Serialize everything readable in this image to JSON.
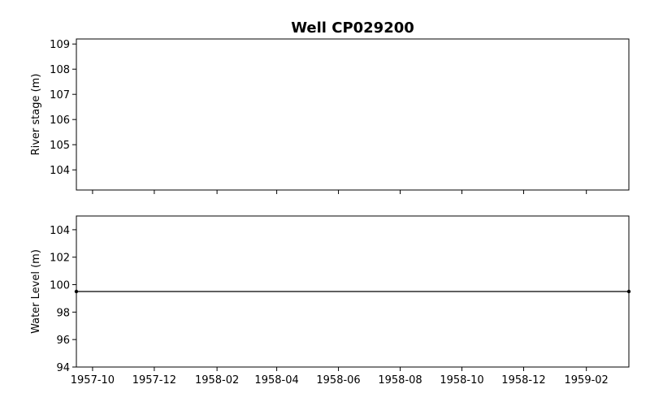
{
  "chart_data": {
    "type": "line",
    "title": "Well CP029200",
    "x_ticks": [
      "1957-10",
      "1957-12",
      "1958-02",
      "1958-04",
      "1958-06",
      "1958-08",
      "1958-10",
      "1958-12",
      "1959-02"
    ],
    "xlim": [
      "1957-09-15",
      "1959-03-15"
    ],
    "panels": [
      {
        "id": "river",
        "ylabel": "River stage (m)",
        "ylim": [
          103.2,
          109.2
        ],
        "y_ticks": [
          104,
          105,
          106,
          107,
          108,
          109
        ],
        "series": []
      },
      {
        "id": "water",
        "ylabel": "Water Level (m)",
        "ylim": [
          94,
          105
        ],
        "y_ticks": [
          94,
          96,
          98,
          100,
          102,
          104
        ],
        "series": [
          {
            "color": "#000000",
            "x": [
              "1957-09-15",
              "1959-03-15"
            ],
            "y": [
              99.5,
              99.5
            ]
          }
        ]
      }
    ]
  }
}
